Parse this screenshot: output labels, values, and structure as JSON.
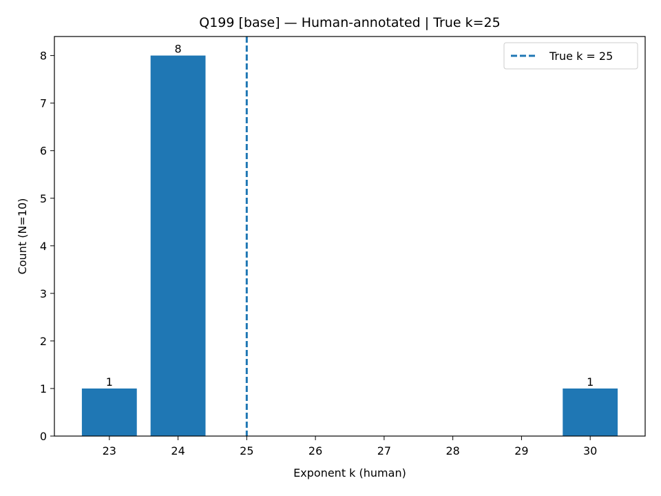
{
  "chart_data": {
    "type": "bar",
    "title": "Q199 [base] — Human-annotated | True k=25",
    "xlabel": "Exponent k (human)",
    "ylabel": "Count (N=10)",
    "x_ticks": [
      23,
      24,
      25,
      26,
      27,
      28,
      29,
      30
    ],
    "y_ticks": [
      0,
      1,
      2,
      3,
      4,
      5,
      6,
      7,
      8
    ],
    "xlim": [
      22.2,
      30.8
    ],
    "ylim": [
      0,
      8.4
    ],
    "bars": [
      {
        "x": 23,
        "value": 1,
        "label": "1"
      },
      {
        "x": 24,
        "value": 8,
        "label": "8"
      },
      {
        "x": 30,
        "value": 1,
        "label": "1"
      }
    ],
    "bar_color": "#1f77b4",
    "reference_line": {
      "x": 25,
      "style": "dashed",
      "color": "#1f77b4",
      "label": "True k = 25"
    },
    "legend": {
      "position": "top-right",
      "entries": [
        "True k = 25"
      ]
    },
    "grid": false
  }
}
